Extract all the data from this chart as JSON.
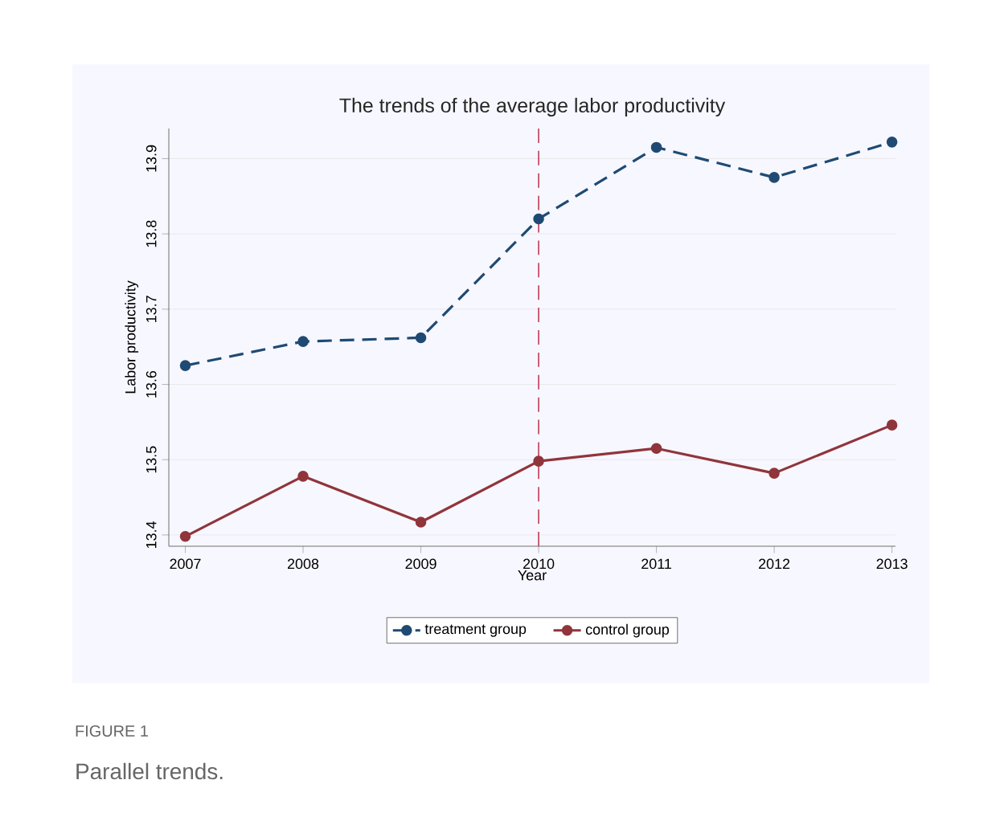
{
  "chart_data": {
    "type": "line",
    "title": "The trends of the average labor productivity",
    "xlabel": "Year",
    "ylabel": "Labor productivity",
    "x": [
      2007,
      2008,
      2009,
      2010,
      2011,
      2012,
      2013
    ],
    "series": [
      {
        "name": "treatment group",
        "color": "#1f4a73",
        "line_style": "dashed",
        "values": [
          13.625,
          13.657,
          13.662,
          13.82,
          13.915,
          13.875,
          13.922
        ]
      },
      {
        "name": "control group",
        "color": "#90353b",
        "line_style": "solid",
        "values": [
          13.398,
          13.478,
          13.417,
          13.498,
          13.515,
          13.482,
          13.546
        ]
      }
    ],
    "marker": "circle",
    "xlim": [
      2006.86,
      2013.03
    ],
    "ylim": [
      13.385,
      13.94
    ],
    "xticks": [
      2007,
      2008,
      2009,
      2010,
      2011,
      2012,
      2013
    ],
    "yticks": [
      13.4,
      13.5,
      13.6,
      13.7,
      13.8,
      13.9
    ],
    "grid": "y",
    "legend": "bottom",
    "ref_lines": [
      {
        "axis": "x",
        "value": 2010,
        "color": "#c0395a",
        "line_style": "dashed"
      }
    ],
    "annotations": [
      "FIGURE 1",
      "Parallel trends."
    ]
  }
}
